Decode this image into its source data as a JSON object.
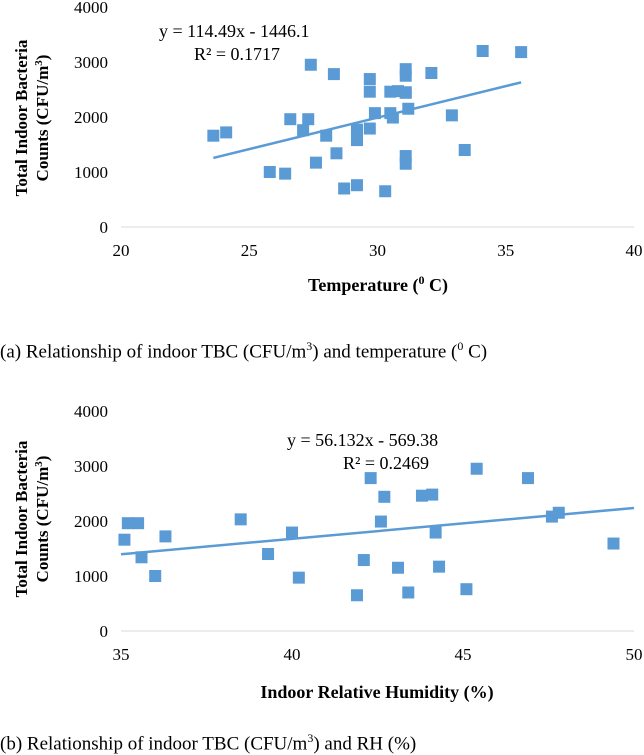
{
  "chart_data": [
    {
      "type": "scatter",
      "id": "a",
      "xlabel_main": "Temperature (",
      "xlabel_sup": "0",
      "xlabel_end": " C)",
      "ylabel_line1": "Total Indoor Bacteria",
      "ylabel_line2_main": "Counts (CFU/m",
      "ylabel_line2_sup": "3",
      "ylabel_line2_end": ")",
      "xlim": [
        20,
        40
      ],
      "ylim": [
        0,
        4000
      ],
      "xticks": [
        20,
        25,
        30,
        35,
        40
      ],
      "yticks": [
        0,
        1000,
        2000,
        3000,
        4000
      ],
      "equation": "y = 114.49x - 1446.1",
      "r_squared": "R² = 0.1717",
      "trendline": {
        "slope": 114.49,
        "intercept": -1446.1,
        "x_from": 23.6,
        "x_to": 35.6
      },
      "marker_color": "#5b9bd5",
      "trend_color": "#5b9bd5",
      "points": [
        [
          23.6,
          1660
        ],
        [
          24.1,
          1720
        ],
        [
          25.8,
          1000
        ],
        [
          26.4,
          970
        ],
        [
          26.6,
          1960
        ],
        [
          27.1,
          1760
        ],
        [
          27.3,
          1960
        ],
        [
          27.4,
          2950
        ],
        [
          27.6,
          1170
        ],
        [
          28.0,
          1660
        ],
        [
          28.3,
          2780
        ],
        [
          28.4,
          1340
        ],
        [
          28.7,
          700
        ],
        [
          29.2,
          760
        ],
        [
          29.2,
          1580
        ],
        [
          29.2,
          1680
        ],
        [
          29.2,
          1770
        ],
        [
          29.7,
          2690
        ],
        [
          29.7,
          2460
        ],
        [
          29.7,
          1790
        ],
        [
          29.9,
          2070
        ],
        [
          30.3,
          650
        ],
        [
          30.5,
          2460
        ],
        [
          30.5,
          2070
        ],
        [
          30.6,
          1990
        ],
        [
          30.8,
          2470
        ],
        [
          31.1,
          2450
        ],
        [
          31.1,
          2440
        ],
        [
          31.1,
          2750
        ],
        [
          31.1,
          2870
        ],
        [
          31.1,
          1290
        ],
        [
          31.1,
          1150
        ],
        [
          31.2,
          2150
        ],
        [
          32.1,
          2800
        ],
        [
          32.9,
          2030
        ],
        [
          33.4,
          1400
        ],
        [
          34.1,
          3200
        ],
        [
          35.6,
          3180
        ]
      ]
    },
    {
      "type": "scatter",
      "id": "b",
      "xlabel_main": "Indoor Relative Humidity (%)",
      "xlabel_sup": "",
      "xlabel_end": "",
      "ylabel_line1": "Total Indoor Bacteria",
      "ylabel_line2_main": "Counts (CFU/m",
      "ylabel_line2_sup": "3",
      "ylabel_line2_end": ")",
      "xlim": [
        35,
        50
      ],
      "ylim": [
        0,
        4000
      ],
      "xticks": [
        35,
        40,
        45,
        50
      ],
      "yticks": [
        0,
        1000,
        2000,
        3000,
        4000
      ],
      "equation": "y = 56.132x - 569.38",
      "r_squared": "R² = 0.2469",
      "trendline": {
        "slope": 56.132,
        "intercept": -569.38,
        "x_from": 35.0,
        "x_to": 50.0
      },
      "marker_color": "#5b9bd5",
      "trend_color": "#5b9bd5",
      "points": [
        [
          35.1,
          1660
        ],
        [
          35.2,
          1960
        ],
        [
          35.5,
          1960
        ],
        [
          35.6,
          1340
        ],
        [
          36.0,
          1000
        ],
        [
          36.3,
          1720
        ],
        [
          38.5,
          2030
        ],
        [
          39.3,
          1400
        ],
        [
          40.0,
          1790
        ],
        [
          40.2,
          970
        ],
        [
          41.9,
          650
        ],
        [
          42.1,
          1290
        ],
        [
          42.3,
          2780
        ],
        [
          42.6,
          1990
        ],
        [
          42.7,
          2440
        ],
        [
          43.1,
          1150
        ],
        [
          43.4,
          700
        ],
        [
          43.8,
          2460
        ],
        [
          44.1,
          2480
        ],
        [
          44.2,
          1790
        ],
        [
          44.3,
          1170
        ],
        [
          45.1,
          760
        ],
        [
          45.4,
          2950
        ],
        [
          46.9,
          2780
        ],
        [
          47.6,
          2080
        ],
        [
          47.8,
          2150
        ],
        [
          49.4,
          1590
        ]
      ]
    }
  ],
  "captions": {
    "a": {
      "pre": "(a) Relationship of indoor TBC (CFU/m",
      "sup1": "3",
      "mid": ") and temperature (",
      "sup2": "0",
      "post": " C)"
    },
    "b": {
      "pre": "(b) Relationship of indoor TBC (CFU/m",
      "sup1": "3",
      "post": ") and RH (%)"
    }
  }
}
